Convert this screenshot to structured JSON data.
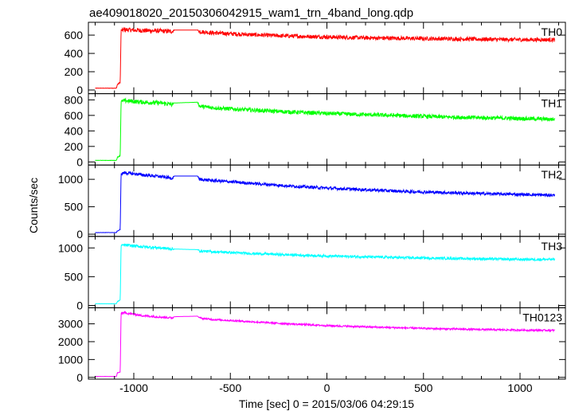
{
  "chart_data": {
    "type": "line",
    "title": "ae409018020_20150306042915_wam1_trn_4band_long.qdp",
    "xlabel": "Time [sec] 0 = 2015/03/06 04:29:15",
    "ylabel": "Counts/sec",
    "xlim": [
      -1235,
      1235
    ],
    "x_ticks": [
      -1000,
      -500,
      0,
      500,
      1000
    ],
    "grid": false,
    "legend": "none",
    "panels": [
      {
        "name": "TH0",
        "color": "#ff0000",
        "ylim": [
          -40,
          740
        ],
        "y_ticks": [
          0,
          200,
          400,
          600
        ],
        "series": {
          "x": [
            -1200,
            -1090,
            -1085,
            -1075,
            -1070,
            -1066,
            -1050,
            -950,
            -860,
            -800,
            -790,
            -670,
            -660,
            -600,
            -400,
            -200,
            0,
            200,
            400,
            600,
            800,
            1000,
            1180
          ],
          "y": [
            20,
            20,
            60,
            75,
            85,
            650,
            660,
            650,
            645,
            640,
            655,
            655,
            640,
            625,
            605,
            590,
            580,
            570,
            565,
            560,
            555,
            550,
            550
          ],
          "noise": [
            2,
            2,
            6,
            6,
            6,
            12,
            25,
            25,
            25,
            25,
            0,
            0,
            22,
            22,
            22,
            22,
            22,
            22,
            22,
            22,
            22,
            22,
            22
          ]
        }
      },
      {
        "name": "TH1",
        "color": "#00ff00",
        "ylim": [
          -40,
          880
        ],
        "y_ticks": [
          0,
          200,
          400,
          600,
          800
        ],
        "series": {
          "x": [
            -1200,
            -1090,
            -1085,
            -1075,
            -1070,
            -1066,
            -1050,
            -950,
            -860,
            -800,
            -790,
            -670,
            -660,
            -600,
            -400,
            -200,
            0,
            200,
            400,
            600,
            800,
            1000,
            1180
          ],
          "y": [
            20,
            20,
            60,
            75,
            85,
            780,
            790,
            770,
            760,
            740,
            760,
            770,
            720,
            700,
            670,
            645,
            625,
            610,
            595,
            580,
            570,
            560,
            550
          ],
          "noise": [
            2,
            2,
            6,
            6,
            6,
            14,
            28,
            28,
            28,
            28,
            0,
            0,
            26,
            26,
            26,
            26,
            26,
            26,
            26,
            26,
            26,
            26,
            26
          ]
        }
      },
      {
        "name": "TH2",
        "color": "#0000ff",
        "ylim": [
          -40,
          1260
        ],
        "y_ticks": [
          0,
          500,
          1000
        ],
        "series": {
          "x": [
            -1200,
            -1090,
            -1085,
            -1075,
            -1070,
            -1066,
            -1050,
            -950,
            -860,
            -800,
            -790,
            -670,
            -660,
            -600,
            -400,
            -200,
            0,
            200,
            400,
            600,
            800,
            1000,
            1180
          ],
          "y": [
            30,
            30,
            60,
            75,
            90,
            1100,
            1120,
            1080,
            1050,
            1020,
            1060,
            1060,
            1000,
            980,
            930,
            880,
            840,
            810,
            780,
            760,
            740,
            725,
            710
          ],
          "noise": [
            2,
            2,
            6,
            6,
            6,
            16,
            30,
            30,
            30,
            30,
            0,
            0,
            28,
            28,
            28,
            28,
            28,
            28,
            28,
            28,
            28,
            28,
            28
          ]
        }
      },
      {
        "name": "TH3",
        "color": "#00ffff",
        "ylim": [
          -40,
          1200
        ],
        "y_ticks": [
          0,
          500,
          1000
        ],
        "series": {
          "x": [
            -1200,
            -1090,
            -1085,
            -1075,
            -1070,
            -1066,
            -1050,
            -950,
            -860,
            -800,
            -790,
            -670,
            -660,
            -600,
            -400,
            -200,
            0,
            200,
            400,
            600,
            800,
            1000,
            1180
          ],
          "y": [
            30,
            30,
            70,
            85,
            95,
            1040,
            1050,
            1020,
            1000,
            980,
            980,
            970,
            950,
            935,
            905,
            880,
            860,
            845,
            830,
            820,
            810,
            800,
            800
          ],
          "noise": [
            2,
            2,
            6,
            6,
            6,
            14,
            25,
            25,
            25,
            25,
            0,
            0,
            22,
            22,
            22,
            22,
            22,
            22,
            22,
            22,
            22,
            22,
            22
          ]
        }
      },
      {
        "name": "TH0123",
        "color": "#ff00ff",
        "ylim": [
          -100,
          3900
        ],
        "y_ticks": [
          0,
          1000,
          2000,
          3000
        ],
        "series": {
          "x": [
            -1200,
            -1090,
            -1085,
            -1075,
            -1070,
            -1066,
            -1050,
            -950,
            -860,
            -800,
            -790,
            -670,
            -660,
            -600,
            -400,
            -200,
            0,
            200,
            400,
            600,
            800,
            1000,
            1180
          ],
          "y": [
            50,
            50,
            250,
            280,
            300,
            3600,
            3620,
            3450,
            3380,
            3330,
            3400,
            3430,
            3330,
            3250,
            3120,
            3000,
            2900,
            2830,
            2770,
            2720,
            2680,
            2650,
            2630
          ],
          "noise": [
            5,
            5,
            15,
            15,
            15,
            40,
            55,
            55,
            55,
            55,
            0,
            0,
            50,
            50,
            50,
            50,
            50,
            50,
            50,
            50,
            50,
            50,
            50
          ]
        }
      }
    ]
  }
}
